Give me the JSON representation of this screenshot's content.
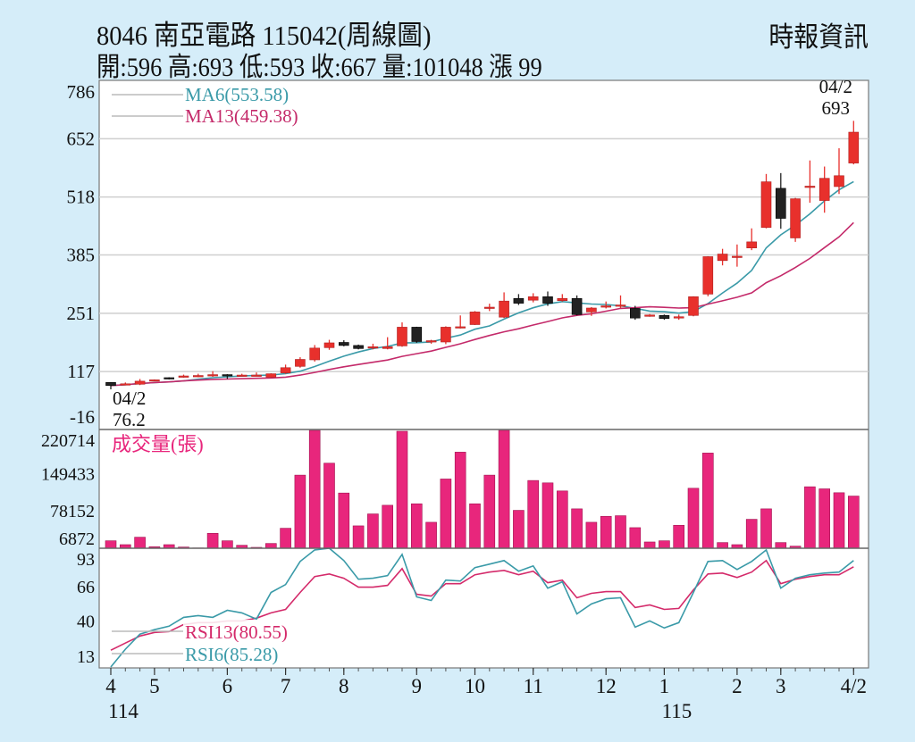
{
  "header": {
    "title": "8046  南亞電路 115042(周線圖)",
    "quote": "開:596 高:693 低:593 收:667 量:101048 漲 99",
    "source": "時報資訊"
  },
  "colors": {
    "background": "#d5edf9",
    "up_candle": "#e8302c",
    "down_candle": "#222222",
    "ma6": "#3a9aa8",
    "ma13": "#c42a6a",
    "volume": "#e8267c",
    "rsi13": "#d42a6a",
    "rsi6": "#3a9aa8",
    "grid": "#cfcfcf"
  },
  "chart_data": [
    {
      "type": "candlestick",
      "panel": "price",
      "ylim": [
        -16,
        786
      ],
      "yticks": [
        786,
        652,
        518,
        385,
        251,
        117,
        -16
      ],
      "grid": true,
      "legend": [
        {
          "label": "MA6(553.58)",
          "period": 6,
          "color_key": "ma6"
        },
        {
          "label": "MA13(459.38)",
          "period": 13,
          "color_key": "ma13"
        }
      ],
      "legend_position": "top-left",
      "annotations": [
        {
          "date": "04/2",
          "value": "693",
          "kind": "high",
          "index": 51
        },
        {
          "date": "04/2",
          "value": "76.2",
          "kind": "low",
          "index": 0
        }
      ],
      "ohlc": [
        [
          92,
          93,
          76.2,
          85
        ],
        [
          87,
          92,
          86,
          89
        ],
        [
          88,
          100,
          86,
          95
        ],
        [
          96,
          99,
          95,
          98
        ],
        [
          103,
          104,
          99,
          100
        ],
        [
          104,
          110,
          103,
          107
        ],
        [
          106,
          112,
          104,
          108
        ],
        [
          108,
          118,
          105,
          110
        ],
        [
          110,
          111,
          100,
          107
        ],
        [
          107,
          112,
          106,
          109
        ],
        [
          108,
          115,
          107,
          109
        ],
        [
          104,
          113,
          103,
          112
        ],
        [
          114,
          133,
          112,
          126
        ],
        [
          129,
          150,
          126,
          145
        ],
        [
          144,
          178,
          140,
          171
        ],
        [
          172,
          190,
          167,
          183
        ],
        [
          184,
          189,
          175,
          177
        ],
        [
          177,
          179,
          168,
          170
        ],
        [
          172,
          181,
          168,
          174
        ],
        [
          170,
          196,
          168,
          174
        ],
        [
          176,
          230,
          174,
          219
        ],
        [
          219,
          220,
          183,
          186
        ],
        [
          186,
          190,
          181,
          188
        ],
        [
          185,
          221,
          180,
          219
        ],
        [
          218,
          246,
          216,
          220
        ],
        [
          225,
          256,
          224,
          254
        ],
        [
          262,
          273,
          256,
          265
        ],
        [
          242,
          299,
          240,
          279
        ],
        [
          285,
          295,
          270,
          274
        ],
        [
          281,
          297,
          276,
          289
        ],
        [
          289,
          301,
          268,
          274
        ],
        [
          280,
          295,
          278,
          285
        ],
        [
          285,
          292,
          246,
          248
        ],
        [
          254,
          265,
          245,
          263
        ],
        [
          265,
          278,
          262,
          268
        ],
        [
          268,
          292,
          263,
          270
        ],
        [
          262,
          268,
          236,
          240
        ],
        [
          245,
          249,
          243,
          247
        ],
        [
          246,
          248,
          236,
          239
        ],
        [
          242,
          248,
          236,
          243
        ],
        [
          246,
          290,
          244,
          289
        ],
        [
          295,
          382,
          290,
          381
        ],
        [
          372,
          399,
          361,
          387
        ],
        [
          380,
          409,
          358,
          382
        ],
        [
          401,
          446,
          396,
          415
        ],
        [
          448,
          571,
          446,
          553
        ],
        [
          538,
          573,
          445,
          469
        ],
        [
          424,
          516,
          415,
          514
        ],
        [
          540,
          602,
          505,
          543
        ],
        [
          510,
          588,
          482,
          561
        ],
        [
          542,
          630,
          525,
          567
        ],
        [
          596,
          693,
          593,
          667
        ]
      ]
    },
    {
      "type": "bar",
      "panel": "volume",
      "label": "成交量(張)",
      "ylim": [
        0,
        230000
      ],
      "yticks": [
        220714,
        149433,
        78152,
        6872
      ],
      "values": [
        14450,
        6936,
        21386,
        2890,
        6936,
        2312,
        578,
        28900,
        14450,
        5780,
        1734,
        9248,
        38726,
        141610,
        245000,
        164730,
        106930,
        43350,
        66470,
        83232,
        226576,
        86122,
        50286,
        134096,
        186116,
        86122,
        141610,
        245000,
        73406,
        131206,
        126582,
        110976,
        76296,
        50286,
        61846,
        63002,
        39882,
        12138,
        14450,
        44506,
        116178,
        184382,
        10982,
        6936,
        56066,
        76296,
        10982,
        4046,
        119068,
        115022,
        107508,
        101048
      ]
    },
    {
      "type": "line",
      "panel": "rsi",
      "ylim": [
        3.5,
        94.7
      ],
      "yticks": [
        93,
        66,
        40,
        13
      ],
      "legend_position": "bottom-left",
      "series": [
        {
          "name": "RSI13(80.55)",
          "color_key": "rsi13",
          "values": [
            17.0,
            22.4,
            27.8,
            30.5,
            31.2,
            36.6,
            38.0,
            38.0,
            39.3,
            39.3,
            41.4,
            45.4,
            48.1,
            61.0,
            73.1,
            75.1,
            71.8,
            65.0,
            65.0,
            66.4,
            79.2,
            59.6,
            58.2,
            67.7,
            67.7,
            74.5,
            76.5,
            77.8,
            74.5,
            77.2,
            68.4,
            70.4,
            56.9,
            60.3,
            61.6,
            61.6,
            49.5,
            51.5,
            48.1,
            48.8,
            63.0,
            75.1,
            75.8,
            72.4,
            76.5,
            85.3,
            67.7,
            71.1,
            73.1,
            74.5,
            74.5,
            80.55
          ]
        },
        {
          "name": "RSI6(85.28)",
          "color_key": "rsi6",
          "values": [
            4.2,
            17.7,
            29.2,
            32.6,
            35.3,
            42.0,
            43.4,
            42.0,
            47.4,
            45.4,
            40.7,
            61.0,
            67.0,
            84.6,
            93.4,
            94.7,
            85.3,
            71.1,
            71.8,
            73.8,
            90.0,
            57.6,
            54.9,
            70.4,
            69.7,
            79.9,
            82.6,
            85.3,
            77.2,
            81.2,
            64.3,
            69.1,
            44.7,
            52.2,
            56.2,
            56.9,
            34.6,
            39.3,
            33.9,
            38.0,
            61.0,
            84.6,
            85.3,
            78.5,
            84.6,
            93.4,
            64.3,
            71.8,
            74.5,
            75.8,
            76.5,
            85.28
          ]
        }
      ]
    },
    {
      "type": "axis",
      "panel": "x",
      "month_ticks": [
        {
          "label": "4",
          "index": 0
        },
        {
          "label": "5",
          "index": 3
        },
        {
          "label": "6",
          "index": 8
        },
        {
          "label": "7",
          "index": 12
        },
        {
          "label": "8",
          "index": 16
        },
        {
          "label": "9",
          "index": 21
        },
        {
          "label": "10",
          "index": 25
        },
        {
          "label": "11",
          "index": 29
        },
        {
          "label": "12",
          "index": 34
        },
        {
          "label": "1",
          "index": 38
        },
        {
          "label": "2",
          "index": 43
        },
        {
          "label": "3",
          "index": 46
        },
        {
          "label": "4/2",
          "index": 51
        }
      ],
      "year_ticks": [
        {
          "label": "114",
          "index": 0
        },
        {
          "label": "115",
          "index": 38
        }
      ]
    }
  ]
}
